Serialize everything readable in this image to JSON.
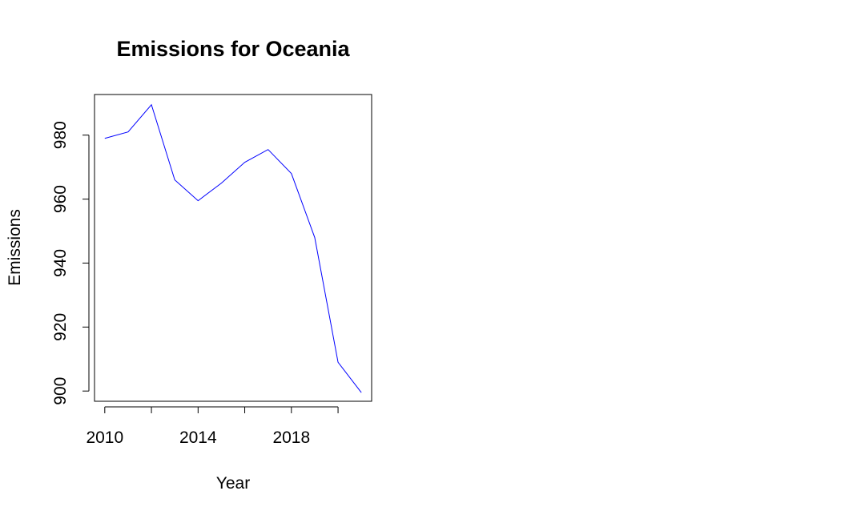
{
  "chart_data": {
    "type": "line",
    "title": "Emissions for Oceania",
    "xlabel": "Year",
    "ylabel": "Emissions",
    "x": [
      2010,
      2011,
      2012,
      2013,
      2014,
      2015,
      2016,
      2017,
      2018,
      2019,
      2020,
      2021
    ],
    "series": [
      {
        "values": [
          979,
          981,
          989.5,
          966,
          959.5,
          965,
          971.5,
          975.5,
          968,
          948,
          909,
          899.5
        ],
        "color": "#0000ff"
      }
    ],
    "xticks": [
      2010,
      2012,
      2014,
      2016,
      2018,
      2020
    ],
    "xtick_labels": [
      "2010",
      "",
      "2014",
      "",
      "2018",
      ""
    ],
    "yticks": [
      900,
      920,
      940,
      960,
      980
    ],
    "xlim": [
      2009.56,
      2021.44
    ],
    "ylim": [
      896.8,
      992.7
    ],
    "grid": false,
    "legend": "none",
    "box": true
  }
}
